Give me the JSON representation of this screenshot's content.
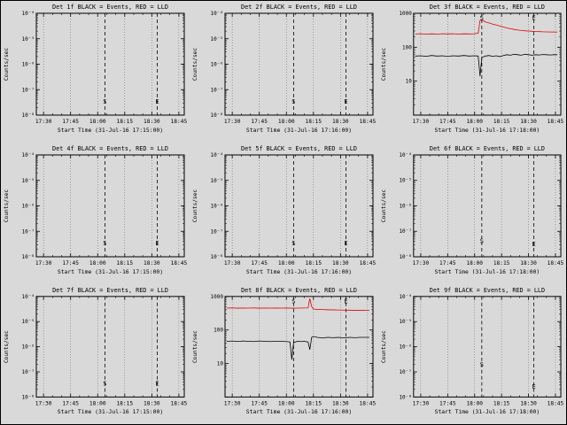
{
  "window_title": "Detector count rate panels",
  "colors": {
    "background": "#d9d9d9",
    "frame": "#000000",
    "series_black": "#000000",
    "series_red": "#dd0000",
    "gridline": "#555555"
  },
  "markers": {
    "start_label": "S",
    "end_label": "E"
  },
  "chart_data": [
    {
      "type": "line",
      "title": "Det 1f BLACK = Events, RED = LLD",
      "ylabel": "Counts/sec",
      "xlabel": "Start Time (31-Jul-16 17:15:00)",
      "x_range_min": [
        26,
        108
      ],
      "x_ticks": [
        30,
        45,
        60,
        75,
        90,
        105
      ],
      "x_tick_labels": [
        "17:30",
        "17:45",
        "18:00",
        "18:15",
        "18:30",
        "18:45"
      ],
      "y_range_exp": [
        -8,
        -4
      ],
      "y_ticks": [
        {
          "e": -4,
          "label": "10⁻⁴"
        },
        {
          "e": -5,
          "label": "10⁻⁵"
        },
        {
          "e": -6,
          "label": "10⁻⁶"
        },
        {
          "e": -7,
          "label": "10⁻⁷"
        },
        {
          "e": -8,
          "label": "10⁻⁸"
        }
      ],
      "s_line_min": 64,
      "e_line_min": 93,
      "s_frac": 0.13,
      "e_frac": 0.13,
      "series": []
    },
    {
      "type": "line",
      "title": "Det 2f BLACK = Events, RED = LLD",
      "ylabel": "Counts/sec",
      "xlabel": "Start Time (31-Jul-16 17:16:00)",
      "x_range_min": [
        26,
        108
      ],
      "x_ticks": [
        30,
        45,
        60,
        75,
        90,
        105
      ],
      "x_tick_labels": [
        "17:30",
        "17:45",
        "18:00",
        "18:15",
        "18:30",
        "18:45"
      ],
      "y_range_exp": [
        -8,
        -4
      ],
      "y_ticks": [
        {
          "e": -4,
          "label": "10⁻⁴"
        },
        {
          "e": -5,
          "label": "10⁻⁵"
        },
        {
          "e": -6,
          "label": "10⁻⁶"
        },
        {
          "e": -7,
          "label": "10⁻⁷"
        },
        {
          "e": -8,
          "label": "10⁻⁸"
        }
      ],
      "s_line_min": 64,
      "e_line_min": 93,
      "s_frac": 0.13,
      "e_frac": 0.13,
      "series": []
    },
    {
      "type": "line",
      "title": "Det 3f BLACK = Events, RED = LLD",
      "ylabel": "Counts/sec",
      "xlabel": "Start Time (31-Jul-16 17:18:00)",
      "x_range_min": [
        26,
        108
      ],
      "x_ticks": [
        30,
        45,
        60,
        75,
        90,
        105
      ],
      "x_tick_labels": [
        "17:30",
        "17:45",
        "18:00",
        "18:15",
        "18:30",
        "18:45"
      ],
      "y_range_exp": [
        0,
        3
      ],
      "y_ticks": [
        {
          "e": 3,
          "label": "1000"
        },
        {
          "e": 2,
          "label": "100"
        },
        {
          "e": 1,
          "label": "10"
        }
      ],
      "s_line_min": 64,
      "e_line_min": 93,
      "s_frac": 0.95,
      "e_frac": 0.95,
      "series": [
        {
          "name": "LLD",
          "color_key": "series_red",
          "points": [
            [
              27,
              245
            ],
            [
              30,
              250
            ],
            [
              33,
              243
            ],
            [
              36,
              248
            ],
            [
              39,
              244
            ],
            [
              42,
              250
            ],
            [
              45,
              246
            ],
            [
              48,
              250
            ],
            [
              51,
              244
            ],
            [
              54,
              248
            ],
            [
              57,
              246
            ],
            [
              60,
              250
            ],
            [
              62,
              260
            ],
            [
              63,
              620
            ],
            [
              64,
              640
            ],
            [
              65,
              600
            ],
            [
              66,
              560
            ],
            [
              68,
              520
            ],
            [
              70,
              480
            ],
            [
              72,
              450
            ],
            [
              74,
              420
            ],
            [
              76,
              395
            ],
            [
              78,
              370
            ],
            [
              80,
              350
            ],
            [
              82,
              335
            ],
            [
              84,
              322
            ],
            [
              86,
              312
            ],
            [
              88,
              305
            ],
            [
              90,
              300
            ],
            [
              92,
              295
            ],
            [
              94,
              290
            ],
            [
              96,
              288
            ],
            [
              98,
              285
            ],
            [
              100,
              284
            ],
            [
              102,
              282
            ],
            [
              104,
              281
            ],
            [
              106,
              280
            ]
          ]
        },
        {
          "name": "Events",
          "color_key": "series_black",
          "points": [
            [
              27,
              55
            ],
            [
              30,
              56
            ],
            [
              33,
              54
            ],
            [
              36,
              57
            ],
            [
              39,
              55
            ],
            [
              42,
              56
            ],
            [
              45,
              54
            ],
            [
              48,
              56
            ],
            [
              51,
              55
            ],
            [
              54,
              57
            ],
            [
              57,
              55
            ],
            [
              60,
              56
            ],
            [
              62,
              55
            ],
            [
              63,
              14
            ],
            [
              64,
              50
            ],
            [
              66,
              55
            ],
            [
              68,
              57
            ],
            [
              70,
              54
            ],
            [
              72,
              56
            ],
            [
              74,
              53
            ],
            [
              76,
              57
            ],
            [
              78,
              60
            ],
            [
              80,
              58
            ],
            [
              82,
              62
            ],
            [
              84,
              60
            ],
            [
              86,
              58
            ],
            [
              88,
              62
            ],
            [
              90,
              60
            ],
            [
              92,
              58
            ],
            [
              94,
              60
            ],
            [
              96,
              59
            ],
            [
              98,
              61
            ],
            [
              100,
              60
            ],
            [
              102,
              59
            ],
            [
              104,
              60
            ],
            [
              106,
              60
            ]
          ]
        }
      ]
    },
    {
      "type": "line",
      "title": "Det 4f BLACK = Events, RED = LLD",
      "ylabel": "Counts/sec",
      "xlabel": "Start Time (31-Jul-16 17:15:00)",
      "x_range_min": [
        26,
        108
      ],
      "x_ticks": [
        30,
        45,
        60,
        75,
        90,
        105
      ],
      "x_tick_labels": [
        "17:30",
        "17:45",
        "18:00",
        "18:15",
        "18:30",
        "18:45"
      ],
      "y_range_exp": [
        -8,
        -4
      ],
      "y_ticks": [
        {
          "e": -4,
          "label": "10⁻⁴"
        },
        {
          "e": -5,
          "label": "10⁻⁵"
        },
        {
          "e": -6,
          "label": "10⁻⁶"
        },
        {
          "e": -7,
          "label": "10⁻⁷"
        },
        {
          "e": -8,
          "label": "10⁻⁸"
        }
      ],
      "s_line_min": 64,
      "e_line_min": 93,
      "s_frac": 0.13,
      "e_frac": 0.13,
      "series": []
    },
    {
      "type": "line",
      "title": "Det 5f BLACK = Events, RED = LLD",
      "ylabel": "Counts/sec",
      "xlabel": "Start Time (31-Jul-16 17:16:00)",
      "x_range_min": [
        26,
        108
      ],
      "x_ticks": [
        30,
        45,
        60,
        75,
        90,
        105
      ],
      "x_tick_labels": [
        "17:30",
        "17:45",
        "18:00",
        "18:15",
        "18:30",
        "18:45"
      ],
      "y_range_exp": [
        -8,
        -4
      ],
      "y_ticks": [
        {
          "e": -4,
          "label": "10⁻⁴"
        },
        {
          "e": -5,
          "label": "10⁻⁵"
        },
        {
          "e": -6,
          "label": "10⁻⁶"
        },
        {
          "e": -7,
          "label": "10⁻⁷"
        },
        {
          "e": -8,
          "label": "10⁻⁸"
        }
      ],
      "s_line_min": 64,
      "e_line_min": 93,
      "s_frac": 0.13,
      "e_frac": 0.13,
      "series": []
    },
    {
      "type": "line",
      "title": "Det 6f BLACK = Events, RED = LLD",
      "ylabel": "Counts/sec",
      "xlabel": "Start Time (31-Jul-16 17:18:00)",
      "x_range_min": [
        26,
        108
      ],
      "x_ticks": [
        30,
        45,
        60,
        75,
        90,
        105
      ],
      "x_tick_labels": [
        "17:30",
        "17:45",
        "18:00",
        "18:15",
        "18:30",
        "18:45"
      ],
      "y_range_exp": [
        -8,
        -4
      ],
      "y_ticks": [
        {
          "e": -4,
          "label": "10⁻⁴"
        },
        {
          "e": -5,
          "label": "10⁻⁵"
        },
        {
          "e": -6,
          "label": "10⁻⁶"
        },
        {
          "e": -7,
          "label": "10⁻⁷"
        },
        {
          "e": -8,
          "label": "10⁻⁸"
        }
      ],
      "s_line_min": 64,
      "e_line_min": 93,
      "s_frac": 0.15,
      "e_frac": 0.12,
      "series": []
    },
    {
      "type": "line",
      "title": "Det 7f BLACK = Events, RED = LLD",
      "ylabel": "Counts/sec",
      "xlabel": "Start Time (31-Jul-16 17:15:00)",
      "x_range_min": [
        26,
        108
      ],
      "x_ticks": [
        30,
        45,
        60,
        75,
        90,
        105
      ],
      "x_tick_labels": [
        "17:30",
        "17:45",
        "18:00",
        "18:15",
        "18:30",
        "18:45"
      ],
      "y_range_exp": [
        -8,
        -4
      ],
      "y_ticks": [
        {
          "e": -4,
          "label": "10⁻⁴"
        },
        {
          "e": -5,
          "label": "10⁻⁵"
        },
        {
          "e": -6,
          "label": "10⁻⁶"
        },
        {
          "e": -7,
          "label": "10⁻⁷"
        },
        {
          "e": -8,
          "label": "10⁻⁸"
        }
      ],
      "s_line_min": 64,
      "e_line_min": 93,
      "s_frac": 0.13,
      "e_frac": 0.13,
      "series": []
    },
    {
      "type": "line",
      "title": "Det 8f BLACK = Events, RED = LLD",
      "ylabel": "Counts/sec",
      "xlabel": "Start Time (31-Jul-16 17:16:00)",
      "x_range_min": [
        26,
        108
      ],
      "x_ticks": [
        30,
        45,
        60,
        75,
        90,
        105
      ],
      "x_tick_labels": [
        "17:30",
        "17:45",
        "18:00",
        "18:15",
        "18:30",
        "18:45"
      ],
      "y_range_exp": [
        0,
        3
      ],
      "y_ticks": [
        {
          "e": 3,
          "label": "1000"
        },
        {
          "e": 2,
          "label": "100"
        },
        {
          "e": 1,
          "label": "10"
        }
      ],
      "s_line_min": 64,
      "e_line_min": 93,
      "s_frac": 0.95,
      "e_frac": 0.95,
      "series": [
        {
          "name": "LLD",
          "color_key": "series_red",
          "points": [
            [
              27,
              450
            ],
            [
              30,
              455
            ],
            [
              33,
              448
            ],
            [
              36,
              452
            ],
            [
              39,
              450
            ],
            [
              42,
              455
            ],
            [
              45,
              448
            ],
            [
              48,
              452
            ],
            [
              51,
              450
            ],
            [
              54,
              453
            ],
            [
              57,
              450
            ],
            [
              60,
              452
            ],
            [
              63,
              448
            ],
            [
              66,
              450
            ],
            [
              69,
              452
            ],
            [
              72,
              455
            ],
            [
              73,
              860
            ],
            [
              74,
              500
            ],
            [
              75,
              420
            ],
            [
              77,
              410
            ],
            [
              80,
              405
            ],
            [
              83,
              400
            ],
            [
              86,
              398
            ],
            [
              89,
              395
            ],
            [
              92,
              392
            ],
            [
              95,
              390
            ],
            [
              98,
              388
            ],
            [
              101,
              386
            ],
            [
              104,
              385
            ],
            [
              106,
              384
            ]
          ]
        },
        {
          "name": "Events",
          "color_key": "series_black",
          "points": [
            [
              27,
              46
            ],
            [
              30,
              47
            ],
            [
              33,
              45
            ],
            [
              36,
              47
            ],
            [
              39,
              46
            ],
            [
              42,
              45
            ],
            [
              45,
              47
            ],
            [
              48,
              46
            ],
            [
              51,
              45
            ],
            [
              54,
              46
            ],
            [
              57,
              46
            ],
            [
              60,
              45
            ],
            [
              62,
              44
            ],
            [
              63,
              13
            ],
            [
              64,
              42
            ],
            [
              66,
              46
            ],
            [
              68,
              45
            ],
            [
              70,
              46
            ],
            [
              72,
              44
            ],
            [
              73,
              26
            ],
            [
              74,
              60
            ],
            [
              75,
              64
            ],
            [
              77,
              60
            ],
            [
              80,
              58
            ],
            [
              83,
              60
            ],
            [
              86,
              59
            ],
            [
              89,
              60
            ],
            [
              92,
              58
            ],
            [
              95,
              60
            ],
            [
              98,
              59
            ],
            [
              101,
              60
            ],
            [
              104,
              60
            ],
            [
              106,
              60
            ]
          ]
        }
      ]
    },
    {
      "type": "line",
      "title": "Det 9f BLACK = Events, RED = LLD",
      "ylabel": "Counts/sec",
      "xlabel": "Start Time (31-Jul-16 17:18:00)",
      "x_range_min": [
        26,
        108
      ],
      "x_ticks": [
        30,
        45,
        60,
        75,
        90,
        105
      ],
      "x_tick_labels": [
        "17:30",
        "17:45",
        "18:00",
        "18:15",
        "18:30",
        "18:45"
      ],
      "y_range_exp": [
        -8,
        -4
      ],
      "y_ticks": [
        {
          "e": -4,
          "label": "10⁻⁴"
        },
        {
          "e": -5,
          "label": "10⁻⁵"
        },
        {
          "e": -6,
          "label": "10⁻⁶"
        },
        {
          "e": -7,
          "label": "10⁻⁷"
        },
        {
          "e": -8,
          "label": "10⁻⁸"
        }
      ],
      "s_line_min": 64,
      "e_line_min": 93,
      "s_frac": 0.32,
      "e_frac": 0.1,
      "series": []
    }
  ]
}
